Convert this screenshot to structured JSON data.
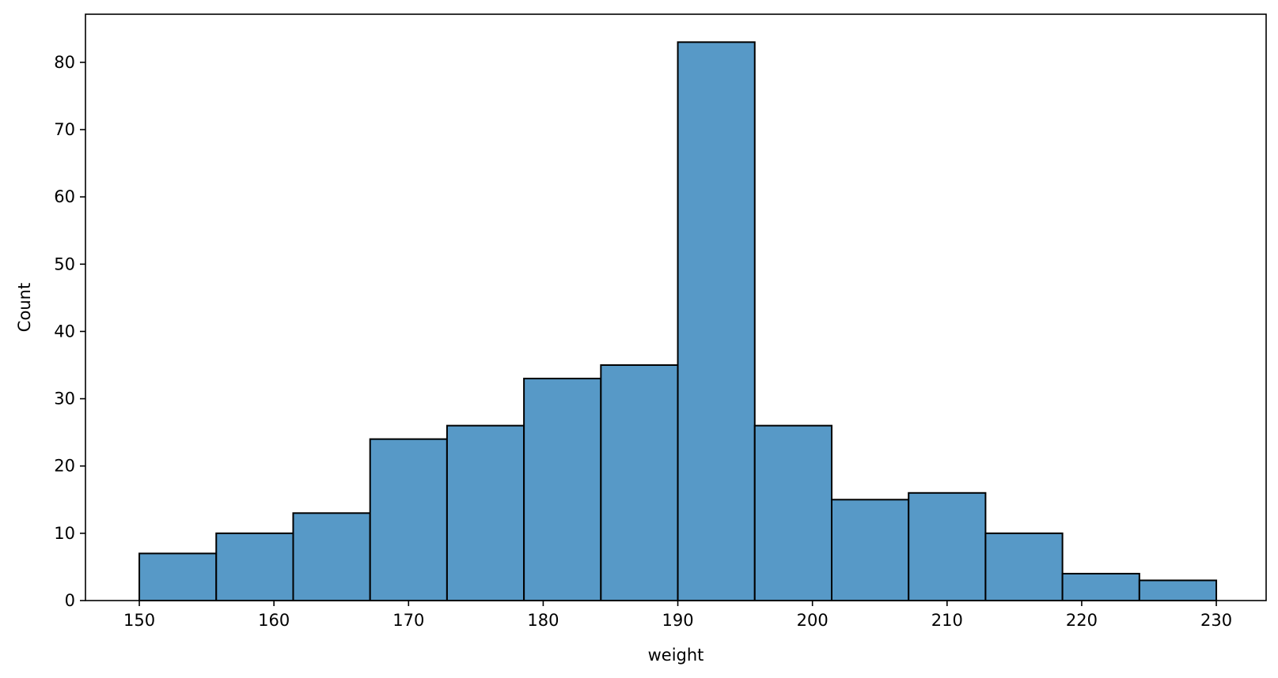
{
  "chart_data": {
    "type": "bar",
    "title": "",
    "xlabel": "weight",
    "ylabel": "Count",
    "xlim": [
      146,
      233.7
    ],
    "ylim": [
      0,
      87.15
    ],
    "x_ticks": [
      150,
      160,
      170,
      180,
      190,
      200,
      210,
      220,
      230
    ],
    "y_ticks": [
      0,
      10,
      20,
      30,
      40,
      50,
      60,
      70,
      80
    ],
    "bin_edges": [
      150,
      155.714,
      161.429,
      167.143,
      172.857,
      178.571,
      184.286,
      190,
      195.714,
      201.429,
      207.143,
      212.857,
      218.571,
      224.286,
      230
    ],
    "values": [
      7,
      10,
      13,
      24,
      26,
      33,
      35,
      83,
      26,
      15,
      16,
      10,
      4,
      3
    ],
    "grid": false,
    "bar_color": "#5799c7",
    "edge_color": "#000000"
  }
}
